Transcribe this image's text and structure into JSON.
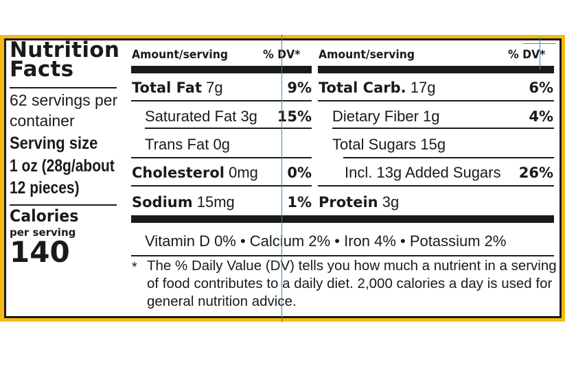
{
  "colors": {
    "border": "#f5b915",
    "ink": "#1a1a1a",
    "guide": "#2a8fc9"
  },
  "title": "Nutrition Facts",
  "servings": "62 servings per container",
  "serving_size_label": "Serving size",
  "serving_size_value": "1 oz (28g/about 12 pieces)",
  "calories_label": "Calories",
  "per_serving": "per serving",
  "calories_value": "140",
  "headers": {
    "left_amount": "Amount/serving",
    "left_dv": "% DV*",
    "right_amount": "Amount/serving",
    "right_dv": "% DV*"
  },
  "left_rows": [
    {
      "name": "Total Fat",
      "amount": "7g",
      "dv": "9%"
    },
    {
      "name": "Saturated Fat",
      "amount": "3g",
      "dv": "15%"
    },
    {
      "name": "Trans Fat",
      "amount": "0g",
      "dv": ""
    },
    {
      "name": "Cholesterol",
      "amount": "0mg",
      "dv": "0%"
    },
    {
      "name": "Sodium",
      "amount": "15mg",
      "dv": "1%"
    }
  ],
  "right_rows": [
    {
      "name": "Total Carb.",
      "amount": "17g",
      "dv": "6%"
    },
    {
      "name": "Dietary Fiber",
      "amount": "1g",
      "dv": "4%"
    },
    {
      "name": "Total Sugars",
      "amount": "15g",
      "dv": ""
    },
    {
      "name": "Incl. 13g Added Sugars",
      "amount": "",
      "dv": "26%"
    },
    {
      "name": "Protein",
      "amount": "3g",
      "dv": ""
    }
  ],
  "vitamins": "Vitamin D 0% • Calcium 2% • Iron 4% • Potassium 2%",
  "footnote_star": "*",
  "footnote": "The % Daily Value (DV) tells you how much a nutrient in a serving of food contributes to a daily diet. 2,000 calories a day is used for general nutrition advice."
}
